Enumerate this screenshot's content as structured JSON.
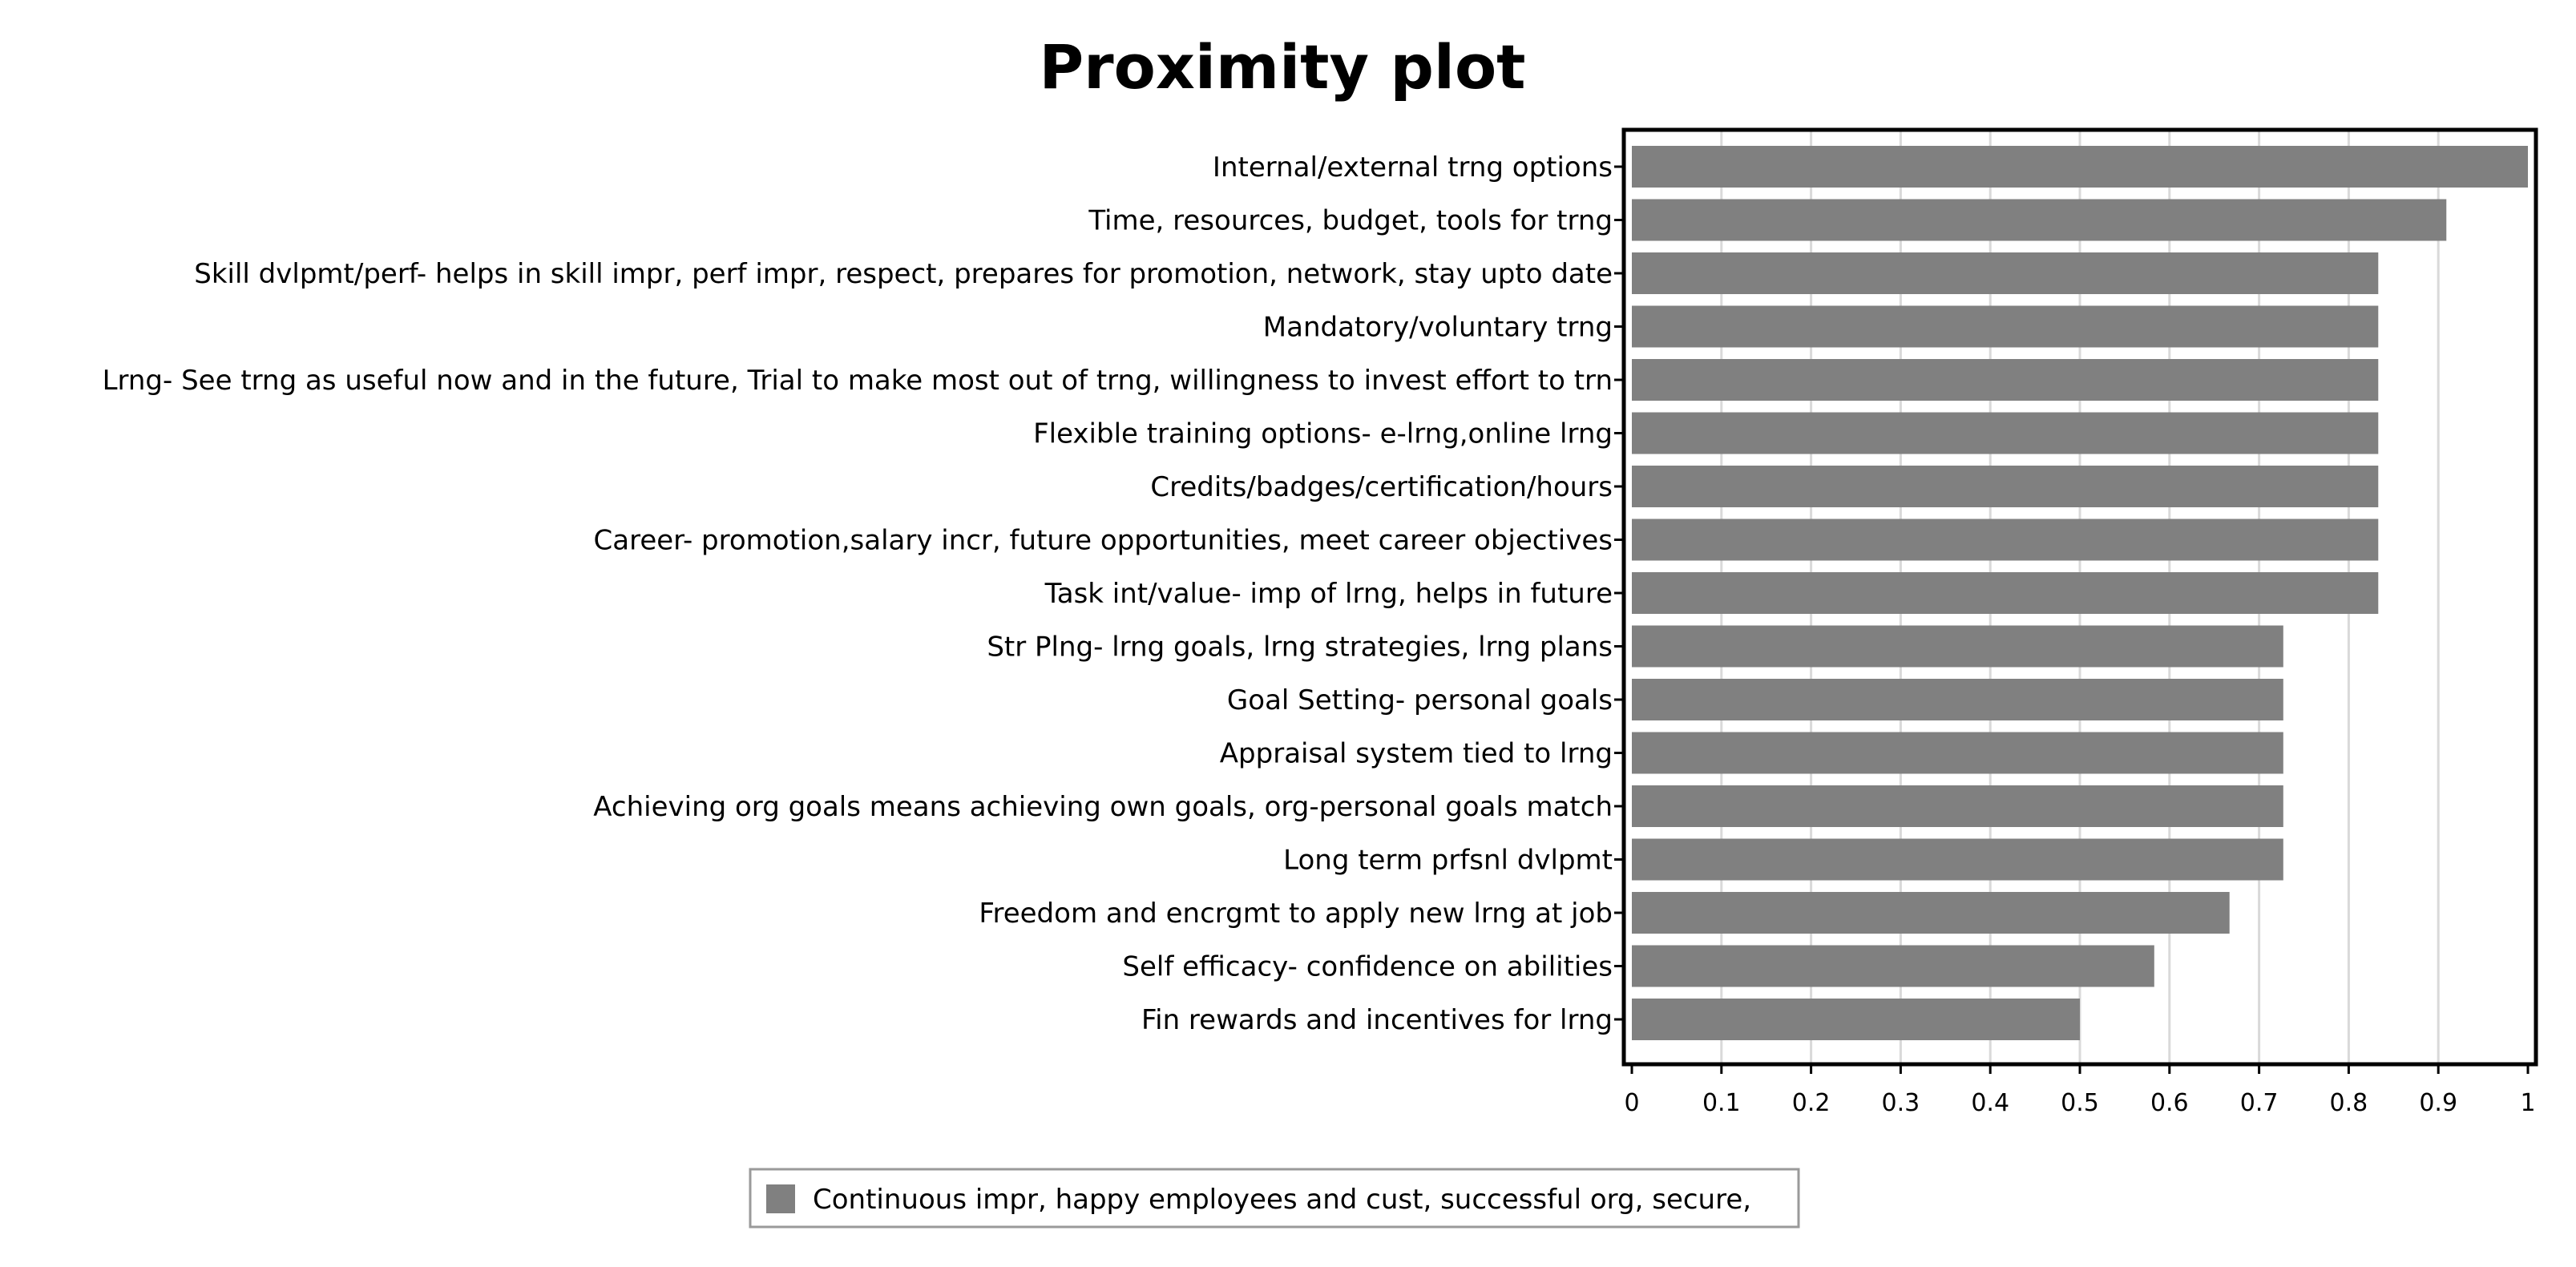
{
  "chart_data": {
    "type": "bar",
    "orientation": "horizontal",
    "title": "Proximity plot",
    "xlabel": "",
    "ylabel": "",
    "xlim": [
      0,
      1
    ],
    "xticks": [
      "0",
      "0.1",
      "0.2",
      "0.3",
      "0.4",
      "0.5",
      "0.6",
      "0.7",
      "0.8",
      "0.9",
      "1"
    ],
    "grid": "vertical",
    "legend_position": "bottom",
    "categories": [
      "Internal/external trng options",
      "Time, resources, budget, tools for trng",
      "Skill dvlpmt/perf- helps in skill impr, perf impr, respect, prepares for promotion, network, stay upto date",
      "Mandatory/voluntary trng",
      "Lrng- See trng as useful now and in the future, Trial to make most out of trng, willingness to invest effort to trn",
      "Flexible training options- e-lrng,online lrng",
      "Credits/badges/certification/hours",
      "Career- promotion,salary incr, future opportunities, meet career objectives",
      "Task int/value- imp of lrng, helps in future",
      "Str Plng- lrng goals, lrng strategies, lrng plans",
      "Goal Setting- personal goals",
      "Appraisal system tied to lrng",
      "Achieving org goals means achieving own goals, org-personal goals match",
      "Long term prfsnl dvlpmt",
      "Freedom and encrgmt to apply new lrng at job",
      "Self efficacy- confidence on abilities",
      "Fin rewards and incentives for lrng"
    ],
    "series": [
      {
        "name": "Continuous impr, happy employees and cust, successful org, secure,",
        "color": "#808080",
        "values": [
          1.0,
          0.909,
          0.833,
          0.833,
          0.833,
          0.833,
          0.833,
          0.833,
          0.833,
          0.727,
          0.727,
          0.727,
          0.727,
          0.727,
          0.667,
          0.583,
          0.5
        ]
      }
    ]
  },
  "colors": {
    "bar": "#808080",
    "grid": "#d9d9d9",
    "frame": "#000000"
  }
}
